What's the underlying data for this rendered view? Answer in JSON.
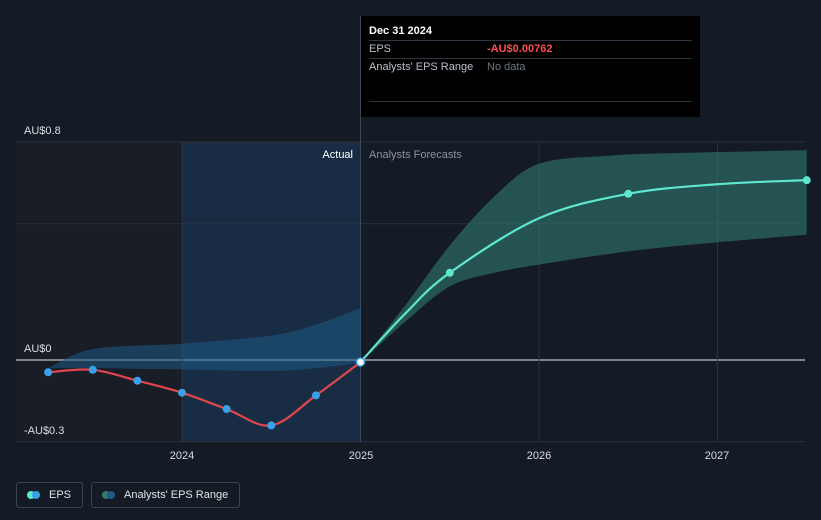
{
  "chart_data": {
    "type": "line",
    "title": "",
    "xlabel": "",
    "ylabel": "",
    "currency": "AU$",
    "x_ticks": [
      "2024",
      "2025",
      "2026",
      "2027"
    ],
    "y_ticks": [
      "AU$0.8",
      "AU$0",
      "-AU$0.3"
    ],
    "ylim": [
      -0.3,
      0.8
    ],
    "divider_label_left": "Actual",
    "divider_label_right": "Analysts Forecasts",
    "series": [
      {
        "name": "EPS (actual)",
        "x": [
          2023.25,
          2023.5,
          2023.75,
          2024.0,
          2024.25,
          2024.5,
          2024.75,
          2025.0
        ],
        "values": [
          -0.045,
          -0.036,
          -0.076,
          -0.12,
          -0.18,
          -0.24,
          -0.13,
          -0.00762
        ]
      },
      {
        "name": "EPS (forecast)",
        "x": [
          2025.0,
          2025.5,
          2026.5,
          2027.5
        ],
        "values": [
          -0.00762,
          0.32,
          0.61,
          0.66
        ]
      }
    ],
    "range_actual": {
      "x": [
        2023.25,
        2023.5,
        2024.0,
        2024.5,
        2024.75,
        2025.0
      ],
      "upper": [
        -0.03,
        0.04,
        0.06,
        0.09,
        0.13,
        0.19
      ],
      "lower": [
        -0.03,
        -0.03,
        -0.035,
        -0.04,
        -0.03,
        -0.01
      ]
    },
    "range_forecast": {
      "x": [
        2025.0,
        2025.25,
        2025.5,
        2025.75,
        2026.0,
        2026.4,
        2026.8,
        2027.5
      ],
      "upper": [
        -0.00762,
        0.2,
        0.42,
        0.6,
        0.72,
        0.75,
        0.76,
        0.77
      ],
      "lower": [
        -0.00762,
        0.14,
        0.27,
        0.32,
        0.35,
        0.39,
        0.42,
        0.46
      ]
    }
  },
  "tooltip": {
    "date": "Dec 31 2024",
    "eps_label": "EPS",
    "eps_value": "-AU$0.00762",
    "range_label": "Analysts' EPS Range",
    "range_value": "No data"
  },
  "legend": {
    "eps_label": "EPS",
    "range_label": "Analysts' EPS Range"
  },
  "colors": {
    "actual_line": "#e0474c",
    "forecast_line": "#5ee6cf",
    "point": "#3aa0e8",
    "forecast_point": "#5ee6cf",
    "range_actual": "#1f5a85",
    "range_forecast": "#2f7a6f"
  }
}
